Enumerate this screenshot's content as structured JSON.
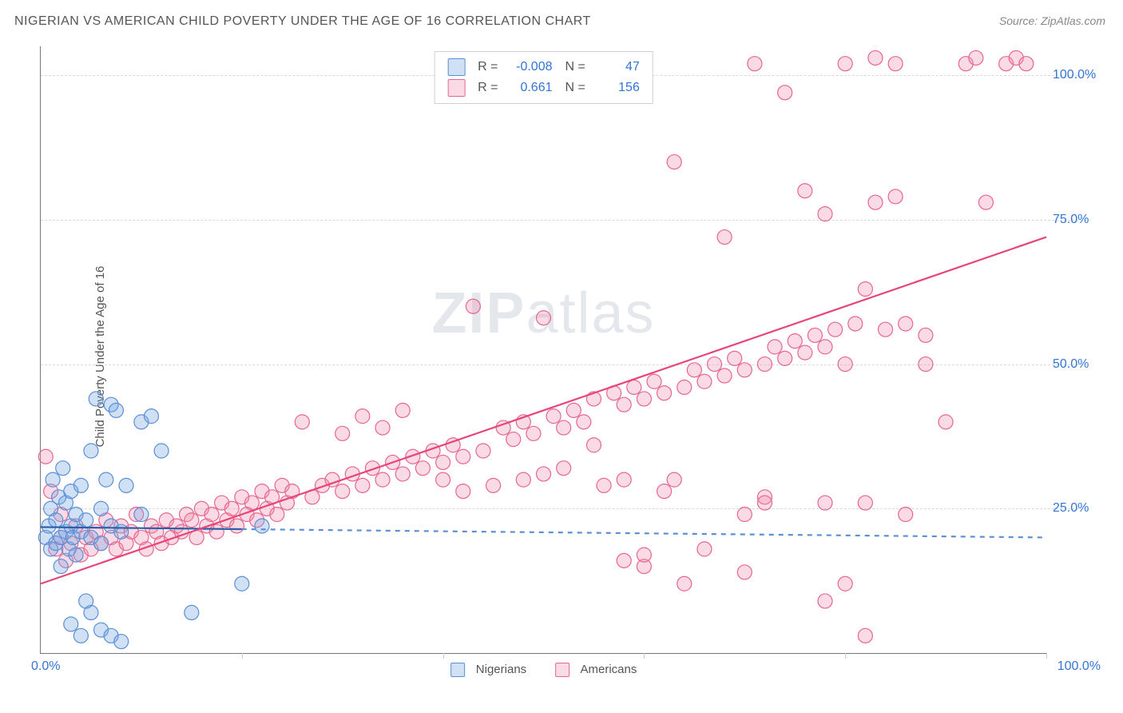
{
  "title": "NIGERIAN VS AMERICAN CHILD POVERTY UNDER THE AGE OF 16 CORRELATION CHART",
  "source": "Source: ZipAtlas.com",
  "ylabel": "Child Poverty Under the Age of 16",
  "watermark_main": "ZIP",
  "watermark_sub": "atlas",
  "chart": {
    "type": "scatter",
    "xlim": [
      0,
      100
    ],
    "ylim": [
      0,
      105
    ],
    "grid_y": [
      25,
      50,
      75,
      100
    ],
    "grid_y_labels": [
      "25.0%",
      "50.0%",
      "75.0%",
      "100.0%"
    ],
    "xtick_positions": [
      0,
      20,
      40,
      60,
      80,
      100
    ],
    "xtick_label_0": "0.0%",
    "xtick_label_100": "100.0%",
    "background_color": "#ffffff",
    "grid_color": "#d9d9d9",
    "tick_label_color": "#3275d6",
    "axis_color": "#777777",
    "marker_radius": 9,
    "marker_stroke_width": 1.2,
    "line_width": 2.2
  },
  "series": {
    "nigerians": {
      "label": "Nigerians",
      "fill": "rgba(120,170,230,0.35)",
      "stroke": "#5b8fd6",
      "R": "-0.008",
      "N": "47",
      "trend": {
        "x1": 0,
        "y1": 21.8,
        "x2": 100,
        "y2": 20.0,
        "solid_until_x": 20
      },
      "points": [
        [
          0.5,
          20
        ],
        [
          0.8,
          22
        ],
        [
          1,
          18
        ],
        [
          1,
          25
        ],
        [
          1.2,
          30
        ],
        [
          1.5,
          19
        ],
        [
          1.5,
          23
        ],
        [
          1.8,
          27
        ],
        [
          2,
          20
        ],
        [
          2,
          15
        ],
        [
          2.2,
          32
        ],
        [
          2.5,
          21
        ],
        [
          2.5,
          26
        ],
        [
          2.8,
          18
        ],
        [
          3,
          22
        ],
        [
          3,
          28
        ],
        [
          3.2,
          20
        ],
        [
          3.5,
          24
        ],
        [
          3.5,
          17
        ],
        [
          4,
          29
        ],
        [
          4,
          21
        ],
        [
          4.5,
          23
        ],
        [
          5,
          35
        ],
        [
          5,
          20
        ],
        [
          5.5,
          44
        ],
        [
          6,
          25
        ],
        [
          6,
          19
        ],
        [
          6.5,
          30
        ],
        [
          7,
          43
        ],
        [
          7,
          22
        ],
        [
          7.5,
          42
        ],
        [
          8,
          21
        ],
        [
          8.5,
          29
        ],
        [
          10,
          40
        ],
        [
          10,
          24
        ],
        [
          11,
          41
        ],
        [
          12,
          35
        ],
        [
          3,
          5
        ],
        [
          4,
          3
        ],
        [
          5,
          7
        ],
        [
          6,
          4
        ],
        [
          7,
          3
        ],
        [
          8,
          2
        ],
        [
          15,
          7
        ],
        [
          4.5,
          9
        ],
        [
          20,
          12
        ],
        [
          22,
          22
        ]
      ]
    },
    "americans": {
      "label": "Americans",
      "fill": "rgba(240,140,170,0.32)",
      "stroke": "#e7668f",
      "R": "0.661",
      "N": "156",
      "trend": {
        "x1": 0,
        "y1": 12,
        "x2": 100,
        "y2": 72
      },
      "points": [
        [
          0.5,
          34
        ],
        [
          1,
          28
        ],
        [
          1.5,
          18
        ],
        [
          2,
          20
        ],
        [
          2,
          24
        ],
        [
          2.5,
          16
        ],
        [
          3,
          19
        ],
        [
          3.5,
          22
        ],
        [
          4,
          17
        ],
        [
          4.5,
          20
        ],
        [
          5,
          18
        ],
        [
          5.5,
          21
        ],
        [
          6,
          19
        ],
        [
          6.5,
          23
        ],
        [
          7,
          20
        ],
        [
          7.5,
          18
        ],
        [
          8,
          22
        ],
        [
          8.5,
          19
        ],
        [
          9,
          21
        ],
        [
          9.5,
          24
        ],
        [
          10,
          20
        ],
        [
          10.5,
          18
        ],
        [
          11,
          22
        ],
        [
          11.5,
          21
        ],
        [
          12,
          19
        ],
        [
          12.5,
          23
        ],
        [
          13,
          20
        ],
        [
          13.5,
          22
        ],
        [
          14,
          21
        ],
        [
          14.5,
          24
        ],
        [
          15,
          23
        ],
        [
          15.5,
          20
        ],
        [
          16,
          25
        ],
        [
          16.5,
          22
        ],
        [
          17,
          24
        ],
        [
          17.5,
          21
        ],
        [
          18,
          26
        ],
        [
          18.5,
          23
        ],
        [
          19,
          25
        ],
        [
          19.5,
          22
        ],
        [
          20,
          27
        ],
        [
          20.5,
          24
        ],
        [
          21,
          26
        ],
        [
          21.5,
          23
        ],
        [
          22,
          28
        ],
        [
          22.5,
          25
        ],
        [
          23,
          27
        ],
        [
          23.5,
          24
        ],
        [
          24,
          29
        ],
        [
          24.5,
          26
        ],
        [
          25,
          28
        ],
        [
          26,
          40
        ],
        [
          27,
          27
        ],
        [
          28,
          29
        ],
        [
          29,
          30
        ],
        [
          30,
          28
        ],
        [
          30,
          38
        ],
        [
          31,
          31
        ],
        [
          32,
          29
        ],
        [
          32,
          41
        ],
        [
          33,
          32
        ],
        [
          34,
          30
        ],
        [
          34,
          39
        ],
        [
          35,
          33
        ],
        [
          36,
          31
        ],
        [
          36,
          42
        ],
        [
          37,
          34
        ],
        [
          38,
          32
        ],
        [
          39,
          35
        ],
        [
          40,
          33
        ],
        [
          40,
          30
        ],
        [
          41,
          36
        ],
        [
          42,
          34
        ],
        [
          42,
          28
        ],
        [
          43,
          60
        ],
        [
          44,
          35
        ],
        [
          45,
          29
        ],
        [
          46,
          39
        ],
        [
          47,
          37
        ],
        [
          48,
          30
        ],
        [
          48,
          40
        ],
        [
          49,
          38
        ],
        [
          50,
          58
        ],
        [
          50,
          31
        ],
        [
          51,
          41
        ],
        [
          52,
          39
        ],
        [
          52,
          32
        ],
        [
          53,
          42
        ],
        [
          54,
          40
        ],
        [
          55,
          44
        ],
        [
          56,
          29
        ],
        [
          57,
          45
        ],
        [
          58,
          43
        ],
        [
          58,
          30
        ],
        [
          59,
          46
        ],
        [
          60,
          44
        ],
        [
          60,
          15
        ],
        [
          61,
          47
        ],
        [
          62,
          45
        ],
        [
          62,
          28
        ],
        [
          63,
          85
        ],
        [
          64,
          46
        ],
        [
          64,
          12
        ],
        [
          65,
          49
        ],
        [
          66,
          47
        ],
        [
          66,
          18
        ],
        [
          67,
          50
        ],
        [
          68,
          48
        ],
        [
          68,
          72
        ],
        [
          69,
          51
        ],
        [
          70,
          49
        ],
        [
          70,
          24
        ],
        [
          70,
          14
        ],
        [
          71,
          102
        ],
        [
          72,
          50
        ],
        [
          72,
          27
        ],
        [
          73,
          53
        ],
        [
          74,
          51
        ],
        [
          74,
          97
        ],
        [
          75,
          54
        ],
        [
          76,
          52
        ],
        [
          76,
          80
        ],
        [
          77,
          55
        ],
        [
          78,
          53
        ],
        [
          78,
          26
        ],
        [
          78,
          9
        ],
        [
          79,
          56
        ],
        [
          80,
          102
        ],
        [
          80,
          50
        ],
        [
          80,
          12
        ],
        [
          81,
          57
        ],
        [
          82,
          63
        ],
        [
          82,
          3
        ],
        [
          83,
          78
        ],
        [
          83,
          103
        ],
        [
          84,
          56
        ],
        [
          85,
          79
        ],
        [
          85,
          102
        ],
        [
          86,
          57
        ],
        [
          88,
          50
        ],
        [
          90,
          40
        ],
        [
          92,
          102
        ],
        [
          93,
          103
        ],
        [
          94,
          78
        ],
        [
          96,
          102
        ],
        [
          97,
          103
        ],
        [
          98,
          102
        ],
        [
          82,
          26
        ],
        [
          86,
          24
        ],
        [
          88,
          55
        ],
        [
          60,
          17
        ],
        [
          63,
          30
        ],
        [
          55,
          36
        ],
        [
          58,
          16
        ],
        [
          78,
          76
        ],
        [
          72,
          26
        ]
      ]
    }
  }
}
